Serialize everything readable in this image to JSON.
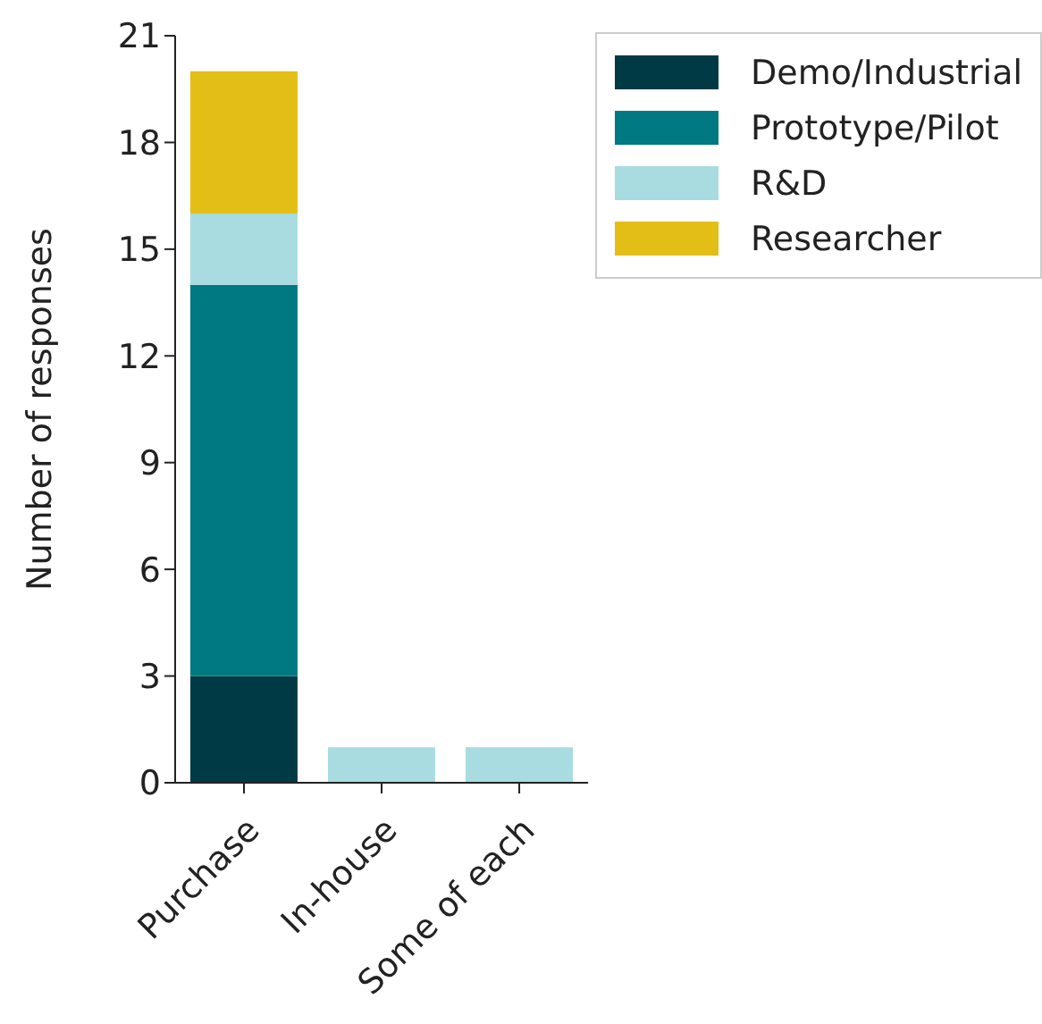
{
  "chart_data": {
    "type": "bar",
    "ylabel": "Number of responses",
    "categories": [
      "Purchase",
      "In-house",
      "Some of each"
    ],
    "series": [
      {
        "name": "Demo/Industrial",
        "color": "#003a44",
        "values": [
          3,
          0,
          0
        ]
      },
      {
        "name": "Prototype/Pilot",
        "color": "#007983",
        "values": [
          11,
          0,
          0
        ]
      },
      {
        "name": "R&D",
        "color": "#a8dce0",
        "values": [
          2,
          1,
          1
        ]
      },
      {
        "name": "Researcher",
        "color": "#e3be16",
        "values": [
          4,
          0,
          0
        ]
      }
    ],
    "stacked": true,
    "ylim": [
      0,
      21
    ],
    "yticks": [
      0,
      3,
      6,
      9,
      12,
      15,
      18,
      21
    ],
    "grid": false,
    "legend": "top right"
  }
}
